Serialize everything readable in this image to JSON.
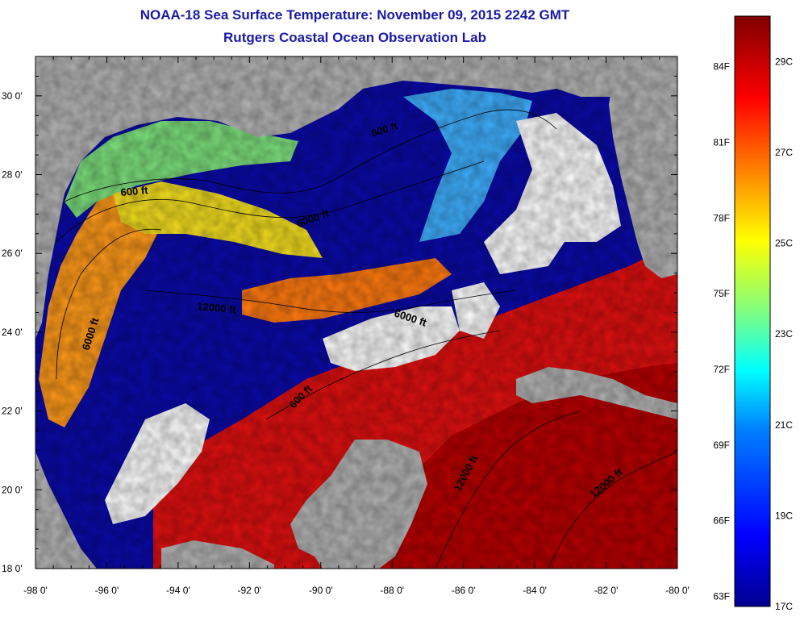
{
  "title": {
    "line1": "NOAA-18 Sea Surface Temperature:  November 09, 2015 2242 GMT",
    "line2": "Rutgers Coastal Ocean Observation Lab"
  },
  "map": {
    "lon_range": [
      -98,
      -80
    ],
    "lat_range": [
      18,
      31
    ],
    "x_ticks": [
      "-98 0'",
      "-96 0'",
      "-94 0'",
      "-92 0'",
      "-90 0'",
      "-88 0'",
      "-86 0'",
      "-84 0'",
      "-82 0'",
      "-80 0'"
    ],
    "y_ticks": [
      "18 0'",
      "20 0'",
      "22 0'",
      "24 0'",
      "26 0'",
      "28 0'",
      "30 0'"
    ],
    "contour_labels": [
      "600 ft",
      "600 ft",
      "6000 ft",
      "12000 ft",
      "6000 ft",
      "6000 ft",
      "600 ft",
      "12000 ft",
      "12000 ft"
    ],
    "land_color": "#b4b4b4",
    "cloud_color": "#ffffff"
  },
  "colorbar": {
    "fahrenheit_labels": [
      "84F",
      "81F",
      "78F",
      "75F",
      "72F",
      "69F",
      "66F",
      "63F"
    ],
    "celsius_labels": [
      "29C",
      "27C",
      "25C",
      "23C",
      "21C",
      "19C",
      "17C"
    ],
    "range_c": [
      17,
      30
    ],
    "colors": [
      "#00008f",
      "#0000ff",
      "#0080ff",
      "#00ffff",
      "#80ff80",
      "#ffff00",
      "#ff8000",
      "#ff0000",
      "#800000"
    ]
  }
}
